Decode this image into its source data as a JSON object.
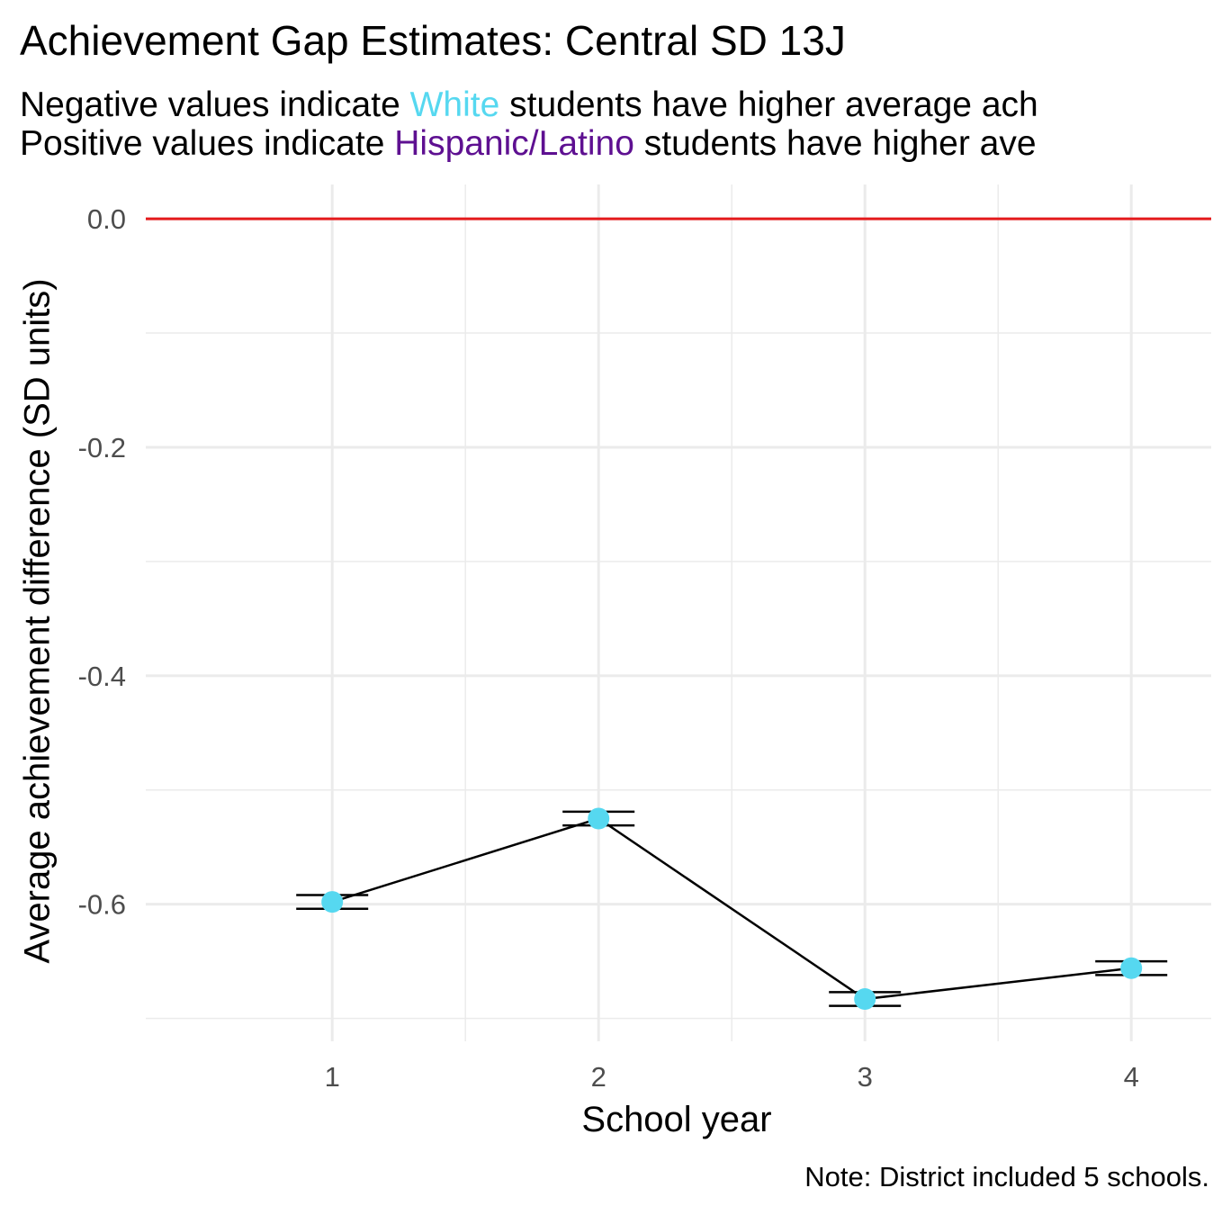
{
  "chart_data": {
    "type": "line",
    "title": "Achievement Gap Estimates: Central SD 13J",
    "subtitle": {
      "line1": {
        "before": "Negative values indicate ",
        "highlight": "White",
        "after": " students have higher average ach"
      },
      "line2": {
        "before": "Positive values indicate ",
        "highlight": "Hispanic/Latino",
        "after": " students have higher ave"
      }
    },
    "xlabel": "School year",
    "ylabel": "Average achievement difference (SD units)",
    "caption": "Note: District included 5 schools.",
    "x_ticks": [
      "1",
      "2",
      "3",
      "4"
    ],
    "y_ticks": [
      0.0,
      -0.2,
      -0.4,
      -0.6
    ],
    "y_tick_labels": [
      "0.0",
      "-0.2",
      "-0.4",
      "-0.6"
    ],
    "xlim": [
      0.3,
      4.3
    ],
    "ylim": [
      -0.72,
      0.03
    ],
    "reference_line": {
      "y": 0.0,
      "color": "#e41a1c"
    },
    "series": [
      {
        "x": [
          1,
          2,
          3,
          4
        ],
        "y": [
          -0.598,
          -0.525,
          -0.683,
          -0.656
        ],
        "ci_lower": [
          -0.604,
          -0.531,
          -0.689,
          -0.662
        ],
        "ci_upper": [
          -0.592,
          -0.519,
          -0.677,
          -0.65
        ],
        "point_color": "#56d8f0",
        "line_color": "#000000"
      }
    ],
    "grid": true,
    "colors": {
      "white_highlight": "#56d8f0",
      "hispanic_highlight": "#5e1091",
      "grid": "#ebebeb"
    }
  }
}
